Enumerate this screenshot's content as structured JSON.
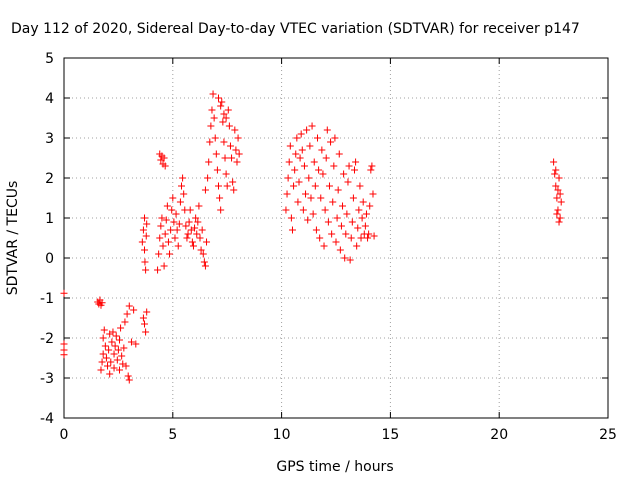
{
  "chart_data": {
    "type": "scatter",
    "title": "Day 112 of 2020, Sidereal Day-to-day VTEC variation (SDTVAR) for receiver p147",
    "xlabel": "GPS time / hours",
    "ylabel": "SDTVAR / TECUs",
    "xlim": [
      0,
      25
    ],
    "ylim": [
      -4,
      5
    ],
    "xticks": [
      "0",
      "5",
      "10",
      "15",
      "20",
      "25"
    ],
    "yticks": [
      "-4",
      "-3",
      "-2",
      "-1",
      "0",
      "1",
      "2",
      "3",
      "4",
      "5"
    ],
    "grid": true,
    "marker": "+",
    "color": "#ff0000",
    "series": [
      {
        "points": [
          [
            0.0,
            -0.88
          ],
          [
            0.0,
            -2.15
          ],
          [
            0.0,
            -2.3
          ],
          [
            0.0,
            -2.42
          ],
          [
            1.55,
            -1.1
          ],
          [
            1.6,
            -1.15
          ],
          [
            1.65,
            -1.05
          ],
          [
            1.7,
            -1.18
          ],
          [
            1.75,
            -1.12
          ],
          [
            1.7,
            -2.8
          ],
          [
            1.75,
            -2.6
          ],
          [
            1.8,
            -2.4
          ],
          [
            1.8,
            -2.0
          ],
          [
            1.85,
            -1.8
          ],
          [
            1.9,
            -2.2
          ],
          [
            1.95,
            -2.5
          ],
          [
            2.0,
            -2.7
          ],
          [
            2.05,
            -2.3
          ],
          [
            2.1,
            -1.9
          ],
          [
            2.1,
            -2.9
          ],
          [
            2.15,
            -2.6
          ],
          [
            2.2,
            -2.1
          ],
          [
            2.25,
            -1.85
          ],
          [
            2.3,
            -2.4
          ],
          [
            2.3,
            -2.75
          ],
          [
            2.35,
            -2.2
          ],
          [
            2.4,
            -1.95
          ],
          [
            2.45,
            -2.55
          ],
          [
            2.5,
            -2.3
          ],
          [
            2.55,
            -2.8
          ],
          [
            2.55,
            -2.05
          ],
          [
            2.6,
            -1.75
          ],
          [
            2.65,
            -2.45
          ],
          [
            2.7,
            -2.65
          ],
          [
            2.75,
            -2.25
          ],
          [
            2.8,
            -1.6
          ],
          [
            2.85,
            -2.7
          ],
          [
            2.9,
            -1.4
          ],
          [
            2.95,
            -2.95
          ],
          [
            3.0,
            -3.05
          ],
          [
            3.0,
            -1.2
          ],
          [
            3.1,
            -2.1
          ],
          [
            3.2,
            -1.3
          ],
          [
            3.3,
            -2.15
          ],
          [
            3.65,
            -1.5
          ],
          [
            3.7,
            -1.65
          ],
          [
            3.75,
            -1.85
          ],
          [
            3.8,
            -1.35
          ],
          [
            3.6,
            0.4
          ],
          [
            3.65,
            0.7
          ],
          [
            3.7,
            1.0
          ],
          [
            3.7,
            0.2
          ],
          [
            3.72,
            -0.1
          ],
          [
            3.75,
            -0.3
          ],
          [
            3.78,
            0.55
          ],
          [
            3.8,
            0.85
          ],
          [
            4.3,
            -0.3
          ],
          [
            4.35,
            0.1
          ],
          [
            4.4,
            0.5
          ],
          [
            4.45,
            0.8
          ],
          [
            4.5,
            1.0
          ],
          [
            4.55,
            0.3
          ],
          [
            4.6,
            -0.2
          ],
          [
            4.65,
            0.6
          ],
          [
            4.7,
            0.95
          ],
          [
            4.75,
            1.3
          ],
          [
            4.8,
            0.4
          ],
          [
            4.85,
            0.1
          ],
          [
            4.9,
            0.7
          ],
          [
            4.95,
            1.2
          ],
          [
            5.0,
            1.5
          ],
          [
            5.05,
            0.9
          ],
          [
            5.1,
            0.5
          ],
          [
            5.15,
            1.1
          ],
          [
            5.2,
            0.7
          ],
          [
            5.25,
            0.3
          ],
          [
            5.3,
            0.85
          ],
          [
            5.35,
            1.4
          ],
          [
            5.4,
            1.8
          ],
          [
            5.45,
            2.0
          ],
          [
            5.5,
            1.6
          ],
          [
            5.55,
            1.2
          ],
          [
            5.6,
            0.8
          ],
          [
            5.65,
            0.5
          ],
          [
            5.7,
            0.6
          ],
          [
            5.75,
            0.9
          ],
          [
            5.8,
            1.2
          ],
          [
            5.85,
            0.7
          ],
          [
            5.9,
            0.4
          ],
          [
            5.95,
            0.3
          ],
          [
            6.0,
            0.75
          ],
          [
            6.05,
            1.0
          ],
          [
            6.1,
            0.6
          ],
          [
            6.15,
            0.9
          ],
          [
            6.2,
            1.3
          ],
          [
            6.25,
            0.5
          ],
          [
            6.3,
            0.2
          ],
          [
            6.35,
            0.7
          ],
          [
            6.4,
            0.1
          ],
          [
            6.45,
            -0.1
          ],
          [
            6.5,
            -0.2
          ],
          [
            6.55,
            0.4
          ],
          [
            4.4,
            2.6
          ],
          [
            4.45,
            2.45
          ],
          [
            4.5,
            2.55
          ],
          [
            4.55,
            2.35
          ],
          [
            4.6,
            2.5
          ],
          [
            4.65,
            2.3
          ],
          [
            6.5,
            1.7
          ],
          [
            6.6,
            2.0
          ],
          [
            6.65,
            2.4
          ],
          [
            6.7,
            2.9
          ],
          [
            6.75,
            3.3
          ],
          [
            6.8,
            3.7
          ],
          [
            6.85,
            4.1
          ],
          [
            6.9,
            3.5
          ],
          [
            6.95,
            3.0
          ],
          [
            7.0,
            2.6
          ],
          [
            7.05,
            2.2
          ],
          [
            7.1,
            1.8
          ],
          [
            7.15,
            1.5
          ],
          [
            7.2,
            1.2
          ],
          [
            7.25,
            3.9
          ],
          [
            7.3,
            3.4
          ],
          [
            7.35,
            2.9
          ],
          [
            7.4,
            2.5
          ],
          [
            7.45,
            2.1
          ],
          [
            7.5,
            1.8
          ],
          [
            7.55,
            3.7
          ],
          [
            7.6,
            3.3
          ],
          [
            7.65,
            2.8
          ],
          [
            7.7,
            2.5
          ],
          [
            7.75,
            1.9
          ],
          [
            7.8,
            1.7
          ],
          [
            7.85,
            3.2
          ],
          [
            7.9,
            2.7
          ],
          [
            7.95,
            2.4
          ],
          [
            8.0,
            3.0
          ],
          [
            8.05,
            2.6
          ],
          [
            7.1,
            4.0
          ],
          [
            7.2,
            3.8
          ],
          [
            7.35,
            3.6
          ],
          [
            7.45,
            3.5
          ],
          [
            10.2,
            1.2
          ],
          [
            10.25,
            1.6
          ],
          [
            10.3,
            2.0
          ],
          [
            10.35,
            2.4
          ],
          [
            10.4,
            2.8
          ],
          [
            10.45,
            1.0
          ],
          [
            10.5,
            0.7
          ],
          [
            10.55,
            1.8
          ],
          [
            10.6,
            2.2
          ],
          [
            10.65,
            2.6
          ],
          [
            10.7,
            3.0
          ],
          [
            10.75,
            1.4
          ],
          [
            10.8,
            1.9
          ],
          [
            10.85,
            2.5
          ],
          [
            10.9,
            3.1
          ],
          [
            10.95,
            2.7
          ],
          [
            11.0,
            1.2
          ],
          [
            11.05,
            2.3
          ],
          [
            11.1,
            1.6
          ],
          [
            11.15,
            3.2
          ],
          [
            11.2,
            0.95
          ],
          [
            11.25,
            2.0
          ],
          [
            11.3,
            2.8
          ],
          [
            11.35,
            1.5
          ],
          [
            11.4,
            3.3
          ],
          [
            11.45,
            1.1
          ],
          [
            11.5,
            2.4
          ],
          [
            11.55,
            1.8
          ],
          [
            11.6,
            0.7
          ],
          [
            11.65,
            3.0
          ],
          [
            11.7,
            2.2
          ],
          [
            11.75,
            0.5
          ],
          [
            11.8,
            1.5
          ],
          [
            11.85,
            2.7
          ],
          [
            11.9,
            2.1
          ],
          [
            11.95,
            0.3
          ],
          [
            12.0,
            1.2
          ],
          [
            12.05,
            2.5
          ],
          [
            12.1,
            3.2
          ],
          [
            12.15,
            0.9
          ],
          [
            12.2,
            1.8
          ],
          [
            12.25,
            2.9
          ],
          [
            12.3,
            0.6
          ],
          [
            12.35,
            1.4
          ],
          [
            12.4,
            2.3
          ],
          [
            12.45,
            3.0
          ],
          [
            12.5,
            0.4
          ],
          [
            12.55,
            1.0
          ],
          [
            12.6,
            1.7
          ],
          [
            12.65,
            2.6
          ],
          [
            12.7,
            0.2
          ],
          [
            12.75,
            0.8
          ],
          [
            12.8,
            1.3
          ],
          [
            12.85,
            2.1
          ],
          [
            12.9,
            0.0
          ],
          [
            12.95,
            0.6
          ],
          [
            13.0,
            1.1
          ],
          [
            13.05,
            1.9
          ],
          [
            13.1,
            2.3
          ],
          [
            13.15,
            -0.05
          ],
          [
            13.2,
            0.5
          ],
          [
            13.25,
            0.9
          ],
          [
            13.3,
            1.5
          ],
          [
            13.35,
            2.2
          ],
          [
            13.4,
            2.4
          ],
          [
            13.45,
            0.3
          ],
          [
            13.5,
            0.75
          ],
          [
            13.55,
            1.2
          ],
          [
            13.6,
            1.8
          ],
          [
            13.65,
            0.5
          ],
          [
            13.7,
            1.0
          ],
          [
            13.75,
            1.4
          ],
          [
            13.8,
            0.6
          ],
          [
            13.85,
            0.8
          ],
          [
            13.9,
            1.1
          ],
          [
            13.95,
            0.5
          ],
          [
            14.0,
            0.6
          ],
          [
            14.05,
            1.3
          ],
          [
            14.1,
            2.2
          ],
          [
            14.15,
            2.3
          ],
          [
            14.2,
            1.6
          ],
          [
            14.25,
            0.55
          ],
          [
            22.5,
            2.4
          ],
          [
            22.55,
            2.1
          ],
          [
            22.6,
            1.8
          ],
          [
            22.65,
            1.5
          ],
          [
            22.7,
            1.2
          ],
          [
            22.75,
            0.9
          ],
          [
            22.8,
            1.0
          ],
          [
            22.85,
            1.4
          ],
          [
            22.6,
            2.2
          ],
          [
            22.7,
            1.7
          ],
          [
            22.8,
            1.6
          ],
          [
            22.75,
            2.0
          ],
          [
            22.65,
            1.1
          ]
        ]
      }
    ]
  }
}
